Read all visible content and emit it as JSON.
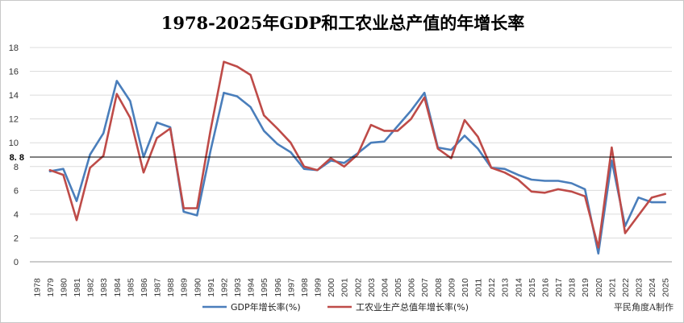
{
  "chart_data": {
    "type": "line",
    "title": "1978-2025年GDP和工农业总产值的年增长率",
    "ylim": [
      0,
      18
    ],
    "yticks": [
      0,
      2,
      4,
      6,
      8,
      10,
      12,
      14,
      16,
      18
    ],
    "grid": "horizontal",
    "reference_line": {
      "value": 8.8,
      "label": "8. 8"
    },
    "categories": [
      "1978",
      "1979",
      "1980",
      "1981",
      "1982",
      "1983",
      "1984",
      "1985",
      "1986",
      "1987",
      "1988",
      "1989",
      "1990",
      "1991",
      "1992",
      "1993",
      "1994",
      "1995",
      "1996",
      "1997",
      "1998",
      "1999",
      "2000",
      "2001",
      "2002",
      "2003",
      "2004",
      "2005",
      "2006",
      "2007",
      "2008",
      "2009",
      "2010",
      "2011",
      "2012",
      "2013",
      "2014",
      "2015",
      "2016",
      "2017",
      "2018",
      "2019",
      "2020",
      "2021",
      "2022",
      "2023",
      "2024",
      "2025"
    ],
    "series": [
      {
        "name": "GDP年增长率(%)",
        "color": "#4a7ebb",
        "values": [
          null,
          7.6,
          7.8,
          5.1,
          9.0,
          10.8,
          15.2,
          13.5,
          8.8,
          11.7,
          11.3,
          4.2,
          3.9,
          9.3,
          14.2,
          13.9,
          13.0,
          11.0,
          9.9,
          9.2,
          7.8,
          7.7,
          8.5,
          8.3,
          9.1,
          10.0,
          10.1,
          11.4,
          12.7,
          14.2,
          9.6,
          9.4,
          10.6,
          9.5,
          7.9,
          7.8,
          7.3,
          6.9,
          6.8,
          6.8,
          6.6,
          6.1,
          0.7,
          8.5,
          3.0,
          5.4,
          5.0,
          5.0
        ]
      },
      {
        "name": "工农业生产总值年增长率(%)",
        "color": "#be4b48",
        "values": [
          null,
          7.7,
          7.3,
          3.5,
          7.9,
          8.9,
          14.1,
          12.1,
          7.5,
          10.4,
          11.2,
          4.5,
          4.5,
          11.0,
          16.8,
          16.4,
          15.7,
          12.3,
          11.2,
          10.0,
          8.0,
          7.7,
          8.7,
          8.0,
          9.0,
          11.5,
          11.0,
          11.0,
          12.0,
          13.8,
          9.5,
          8.7,
          11.9,
          10.5,
          7.9,
          7.5,
          6.9,
          5.9,
          5.8,
          6.1,
          5.9,
          5.5,
          1.2,
          9.6,
          2.4,
          3.9,
          5.4,
          5.7
        ]
      }
    ]
  },
  "credit": "平民角度A制作"
}
